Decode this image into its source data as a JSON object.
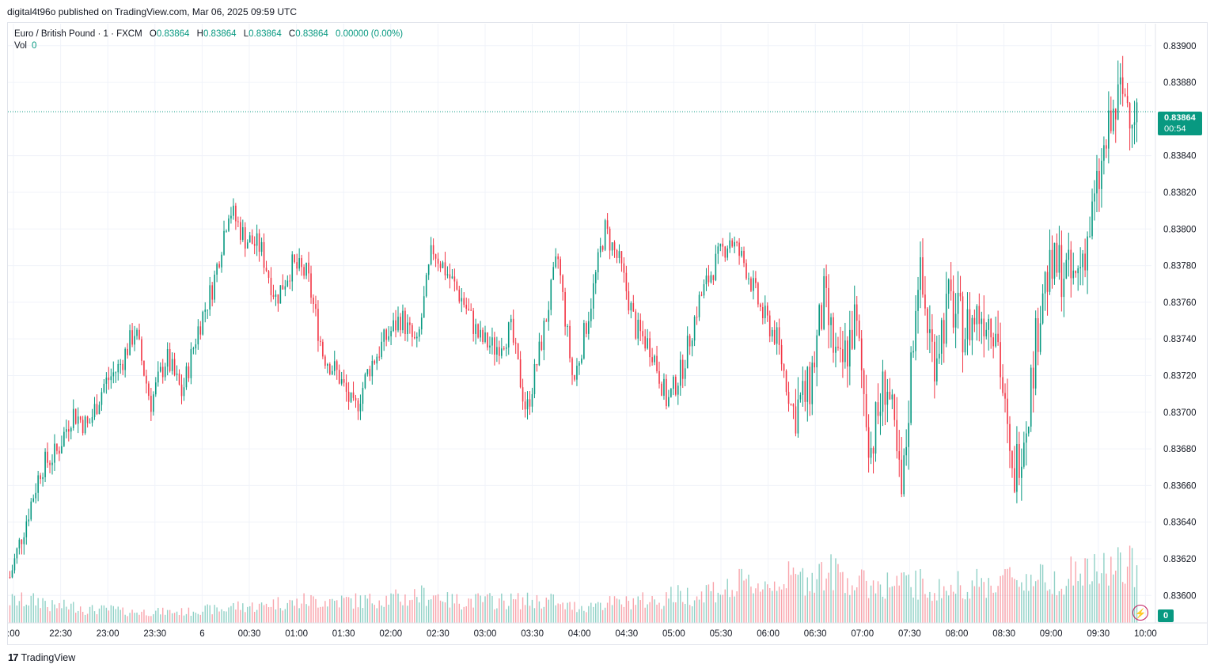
{
  "header": {
    "published": "digital4t96o published on TradingView.com, Mar 06, 2025 09:59 UTC"
  },
  "legend": {
    "symbol": "Euro / British Pound · 1 · FXCM",
    "open_label": "O",
    "open": "0.83864",
    "high_label": "H",
    "high": "0.83864",
    "low_label": "L",
    "low": "0.83864",
    "close_label": "C",
    "close": "0.83864",
    "change": "0.00000 (0.00%)",
    "vol_label": "Vol",
    "vol": "0"
  },
  "price_tag": {
    "price": "0.83864",
    "countdown": "00:54"
  },
  "volume_tag": "0",
  "footer": {
    "brand": "TradingView"
  },
  "colors": {
    "up": "#089981",
    "down": "#f23645",
    "grid": "#f0f3fa",
    "last_price": "#089981"
  },
  "chart_data": {
    "type": "candlestick",
    "ylim": [
      0.83585,
      0.83912
    ],
    "last_price": 0.83864,
    "y_ticks": [
      "0.83900",
      "0.83880",
      "0.83840",
      "0.83820",
      "0.83800",
      "0.83780",
      "0.83760",
      "0.83740",
      "0.83720",
      "0.83700",
      "0.83680",
      "0.83660",
      "0.83640",
      "0.83620",
      "0.83600"
    ],
    "x_ticks": [
      ":00",
      "22:30",
      "23:00",
      "23:30",
      "6",
      "00:30",
      "01:00",
      "01:30",
      "02:00",
      "02:30",
      "03:00",
      "03:30",
      "04:00",
      "04:30",
      "05:00",
      "05:30",
      "06:00",
      "06:30",
      "07:00",
      "07:30",
      "08:00",
      "08:30",
      "09:00",
      "09:30",
      "10:00"
    ],
    "anchors_time_min": [
      0,
      30,
      60,
      90,
      120,
      150,
      180,
      210,
      240,
      270,
      300,
      330,
      360,
      390,
      420,
      450,
      480,
      510,
      540,
      570,
      600,
      630,
      660,
      690,
      720,
      750,
      780,
      810,
      840
    ],
    "anchors_price": [
      0.8361,
      0.8364,
      0.8367,
      0.83678,
      0.837,
      0.83692,
      0.83715,
      0.83725,
      0.83745,
      0.83705,
      0.8373,
      0.8371,
      0.83745,
      0.8377,
      0.83812,
      0.83795,
      0.8379,
      0.83762,
      0.8378,
      0.83775,
      0.83732,
      0.8372,
      0.837,
      0.83725,
      0.8374,
      0.83752,
      0.83735,
      0.8379,
      0.83775
    ],
    "anchors2_time_min": [
      840,
      870,
      900,
      930,
      960,
      990,
      1020,
      1050,
      1080,
      1110,
      1140,
      1170,
      1200,
      1230,
      1260,
      1290,
      1320,
      1350,
      1380,
      1410,
      1440,
      1470,
      1500,
      1530,
      1560,
      1590,
      1620,
      1650,
      1680,
      1710,
      1740,
      1770,
      1800,
      1830,
      1860,
      1890,
      1920,
      1950,
      1980,
      2010,
      2040,
      2070,
      2100,
      2130,
      2160
    ],
    "anchors2_price": [
      0.83775,
      0.8376,
      0.8374,
      0.83735,
      0.83745,
      0.837,
      0.8374,
      0.83785,
      0.83715,
      0.83755,
      0.838,
      0.8378,
      0.83745,
      0.83735,
      0.83705,
      0.83725,
      0.8376,
      0.8378,
      0.83795,
      0.8378,
      0.83755,
      0.8374,
      0.837,
      0.8371,
      0.8376,
      0.8372,
      0.8375,
      0.8368,
      0.8372,
      0.8365,
      0.8378,
      0.8373,
      0.8376,
      0.83745,
      0.83755,
      0.8375,
      0.8366,
      0.837,
      0.8377,
      0.8378,
      0.8377,
      0.838,
      0.83845,
      0.83875,
      0.83864
    ],
    "volume_scale_note": "volume bars relative units",
    "volume_levels": [
      0.2,
      0.15,
      0.12,
      0.1,
      0.1,
      0.12,
      0.15,
      0.18,
      0.2,
      0.2,
      0.22,
      0.25,
      0.2,
      0.2,
      0.2,
      0.15,
      0.18,
      0.2,
      0.25,
      0.3,
      0.35,
      0.4,
      0.45,
      0.35,
      0.35,
      0.3,
      0.35,
      0.4,
      0.4,
      0.45,
      0.5
    ],
    "grid": true
  }
}
